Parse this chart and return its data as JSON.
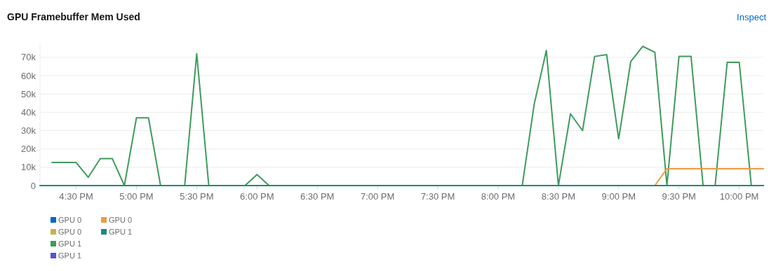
{
  "chart_data": {
    "type": "line",
    "title": "GPU Framebuffer Mem Used",
    "annotations": [
      "Inspect"
    ],
    "x": [
      16.2,
      16.3,
      16.4,
      16.5,
      16.6,
      16.7,
      16.8,
      16.9,
      17.0,
      17.1,
      17.2,
      17.3,
      17.4,
      17.5,
      17.6,
      17.7,
      17.8,
      17.9,
      18.0,
      18.1,
      18.2,
      18.3,
      18.4,
      18.5,
      18.6,
      18.7,
      18.8,
      18.9,
      19.0,
      19.1,
      19.2,
      19.3,
      19.4,
      19.5,
      19.6,
      19.7,
      19.8,
      19.9,
      20.0,
      20.1,
      20.2,
      20.3,
      20.4,
      20.5,
      20.6,
      20.7,
      20.8,
      20.9,
      21.0,
      21.1,
      21.2,
      21.3,
      21.4,
      21.5,
      21.6,
      21.7,
      21.8,
      21.9,
      22.0,
      22.1,
      22.2
    ],
    "series": [
      {
        "name": "GPU 0",
        "color": "#0066cc",
        "values": [
          null,
          null,
          null,
          null,
          null,
          null,
          null,
          null,
          null,
          null,
          null,
          null,
          null,
          null,
          null,
          null,
          null,
          null,
          null,
          null,
          null,
          null,
          null,
          null,
          null,
          null,
          null,
          null,
          null,
          null,
          null,
          null,
          null,
          null,
          null,
          null,
          null,
          null,
          null,
          null,
          null,
          null,
          null,
          null,
          null,
          null,
          null,
          null,
          null,
          null,
          null,
          null,
          null,
          null,
          null,
          null,
          null,
          null,
          null,
          null,
          null
        ]
      },
      {
        "name": "GPU 0",
        "color": "#c9b24a",
        "values": [
          null,
          null,
          null,
          null,
          null,
          null,
          null,
          null,
          null,
          null,
          null,
          null,
          null,
          null,
          null,
          null,
          null,
          null,
          null,
          null,
          null,
          null,
          null,
          null,
          null,
          null,
          null,
          null,
          null,
          null,
          null,
          null,
          null,
          null,
          null,
          null,
          null,
          null,
          null,
          null,
          null,
          null,
          null,
          null,
          null,
          null,
          null,
          null,
          null,
          null,
          null,
          null,
          null,
          null,
          null,
          null,
          null,
          null,
          null,
          null,
          null
        ]
      },
      {
        "name": "GPU 1",
        "color": "#3e9b5c",
        "values": [
          null,
          12600,
          12600,
          12600,
          4500,
          14700,
          14700,
          0,
          37000,
          37000,
          0,
          0,
          0,
          72000,
          0,
          0,
          0,
          0,
          6000,
          0,
          0,
          0,
          0,
          0,
          0,
          0,
          0,
          0,
          0,
          0,
          0,
          0,
          0,
          0,
          0,
          0,
          0,
          0,
          0,
          0,
          0,
          44700,
          73800,
          0,
          39200,
          30000,
          70500,
          71500,
          25500,
          67700,
          76000,
          72800,
          0,
          70500,
          70500,
          0,
          0,
          67300,
          67300,
          0,
          0
        ]
      },
      {
        "name": "GPU 1",
        "color": "#5752d1",
        "values": [
          null,
          null,
          null,
          null,
          null,
          null,
          null,
          null,
          null,
          null,
          null,
          null,
          null,
          null,
          null,
          null,
          null,
          null,
          null,
          null,
          null,
          null,
          null,
          null,
          null,
          null,
          null,
          null,
          null,
          null,
          null,
          null,
          null,
          null,
          null,
          null,
          null,
          null,
          null,
          null,
          null,
          null,
          null,
          null,
          null,
          null,
          null,
          null,
          null,
          null,
          null,
          null,
          null,
          null,
          null,
          null,
          null,
          null,
          null,
          null,
          null
        ]
      },
      {
        "name": "GPU 0",
        "color": "#ef9a45",
        "values": [
          null,
          null,
          null,
          null,
          null,
          null,
          null,
          null,
          null,
          null,
          null,
          null,
          null,
          null,
          null,
          null,
          null,
          null,
          null,
          null,
          null,
          null,
          null,
          null,
          null,
          null,
          null,
          null,
          null,
          null,
          null,
          null,
          null,
          null,
          null,
          null,
          null,
          null,
          null,
          null,
          null,
          null,
          null,
          null,
          null,
          null,
          null,
          null,
          null,
          null,
          null,
          0,
          9200,
          9200,
          9200,
          9200,
          9200,
          9200,
          9200,
          9200,
          9200
        ]
      },
      {
        "name": "GPU 1",
        "color": "#1a8a80",
        "values": [
          0,
          0,
          0,
          0,
          0,
          0,
          0,
          0,
          0,
          0,
          0,
          0,
          0,
          0,
          0,
          0,
          0,
          0,
          0,
          0,
          0,
          0,
          0,
          0,
          0,
          0,
          0,
          0,
          0,
          0,
          0,
          0,
          0,
          0,
          0,
          0,
          0,
          0,
          0,
          0,
          0,
          0,
          0,
          0,
          0,
          0,
          0,
          0,
          0,
          0,
          0,
          0,
          0,
          0,
          0,
          0,
          0,
          0,
          0,
          0,
          0
        ]
      }
    ],
    "xlim": [
      16.2,
      22.2
    ],
    "xticks": [
      {
        "value": 16.5,
        "label": "4:30 PM"
      },
      {
        "value": 17,
        "label": "5:00 PM"
      },
      {
        "value": 17.5,
        "label": "5:30 PM"
      },
      {
        "value": 18,
        "label": "6:00 PM"
      },
      {
        "value": 18.5,
        "label": "6:30 PM"
      },
      {
        "value": 19,
        "label": "7:00 PM"
      },
      {
        "value": 19.5,
        "label": "7:30 PM"
      },
      {
        "value": 20,
        "label": "8:00 PM"
      },
      {
        "value": 20.5,
        "label": "8:30 PM"
      },
      {
        "value": 21,
        "label": "9:00 PM"
      },
      {
        "value": 21.5,
        "label": "9:30 PM"
      },
      {
        "value": 22,
        "label": "10:00 PM"
      }
    ],
    "ylim": [
      0,
      78000
    ],
    "yticks": [
      0,
      {
        "value": 10000,
        "label": "10k"
      },
      {
        "value": 20000,
        "label": "20k"
      },
      {
        "value": 30000,
        "label": "30k"
      },
      {
        "value": 40000,
        "label": "40k"
      },
      {
        "value": 50000,
        "label": "50k"
      },
      {
        "value": 60000,
        "label": "60k"
      },
      {
        "value": 70000,
        "label": "70k"
      }
    ],
    "grid": "y",
    "legend": "bottom left",
    "marker": "none",
    "line_style": "solid"
  }
}
